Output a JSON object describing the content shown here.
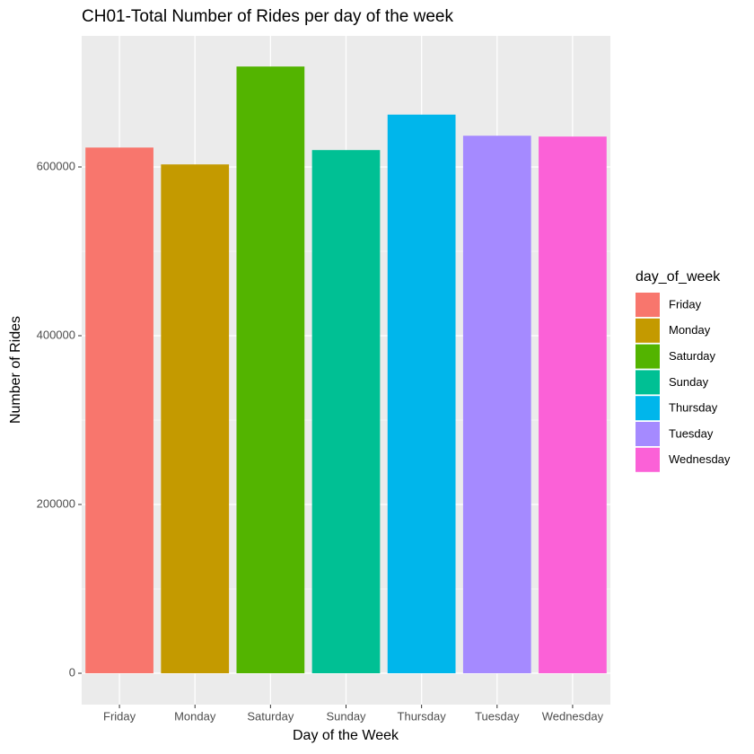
{
  "chart_data": {
    "type": "bar",
    "title": "CH01-Total Number of Rides per day of the week",
    "x_label": "Day of the Week",
    "y_label": "Number of Rides",
    "legend_title": "day_of_week",
    "categories": [
      "Friday",
      "Monday",
      "Saturday",
      "Sunday",
      "Thursday",
      "Tuesday",
      "Wednesday"
    ],
    "values": [
      623000,
      603000,
      719000,
      620000,
      662000,
      637000,
      636000
    ],
    "colors": [
      "#F8766D",
      "#C49A00",
      "#53B400",
      "#00C094",
      "#00B6EB",
      "#A58AFF",
      "#FB61D7"
    ],
    "ylim": [
      -37200,
      755300
    ],
    "yticks": [
      0,
      200000,
      400000,
      600000
    ],
    "grid": true,
    "legend": "right"
  }
}
